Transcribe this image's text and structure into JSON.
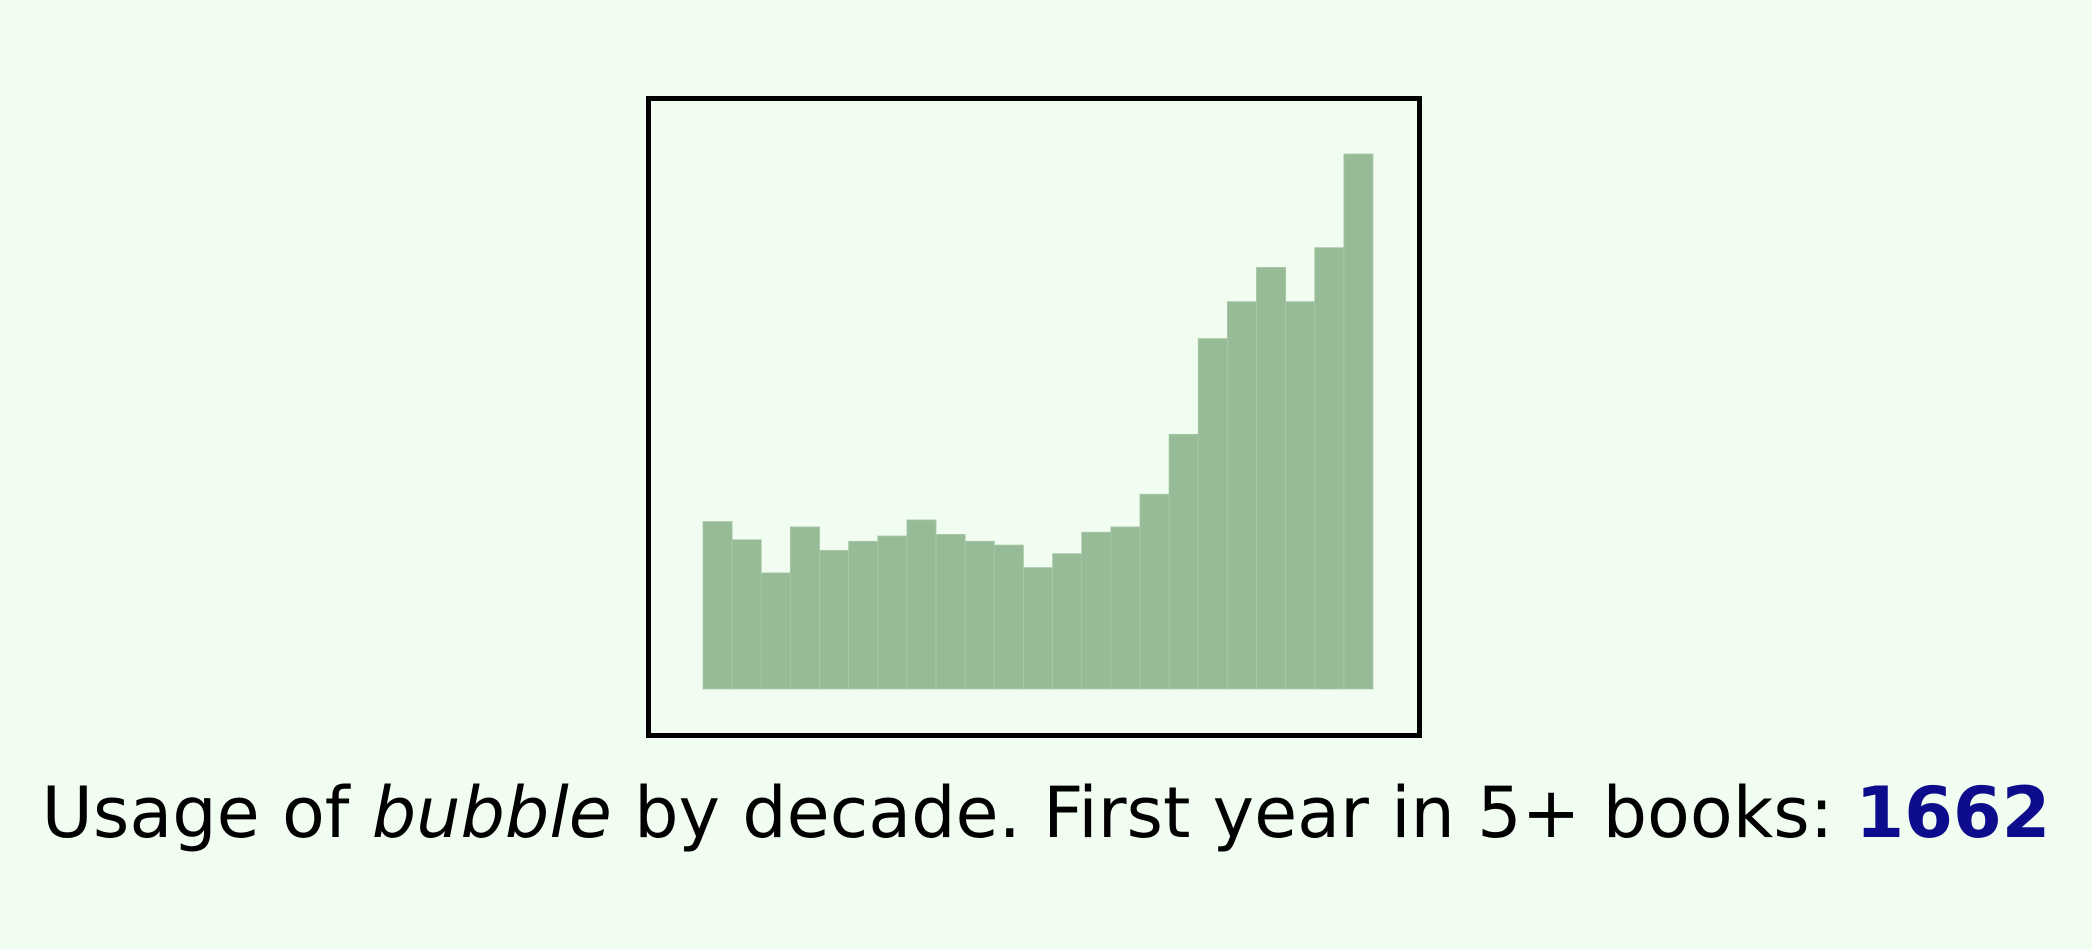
{
  "caption": {
    "prefix": "Usage of ",
    "word": "bubble",
    "middle": " by decade. First year in 5+ books: ",
    "first_year": "1662"
  },
  "colors": {
    "background": "#f1fdf1",
    "bar": "#96bb96",
    "frame": "#000000",
    "year": "#0c0c8c"
  },
  "chart_data": {
    "type": "bar",
    "title": "",
    "xlabel": "",
    "ylabel": "",
    "ylim": [
      0,
      100
    ],
    "values": [
      31.3,
      27.9,
      21.7,
      30.3,
      25.9,
      27.6,
      28.6,
      31.6,
      28.9,
      27.6,
      26.9,
      22.7,
      25.3,
      29.3,
      30.3,
      36.4,
      47.6,
      65.5,
      72.4,
      78.8,
      72.4,
      82.5,
      100
    ]
  }
}
